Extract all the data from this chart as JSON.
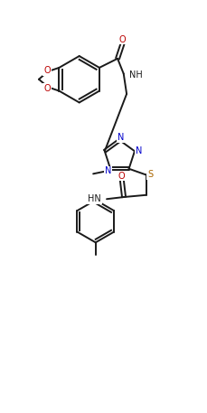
{
  "background_color": "#ffffff",
  "line_color": "#1a1a1a",
  "atom_colors": {
    "N": "#0000cc",
    "O": "#bb0000",
    "S": "#aa6600",
    "C": "#1a1a1a"
  },
  "figsize": [
    2.29,
    4.57
  ],
  "dpi": 100
}
